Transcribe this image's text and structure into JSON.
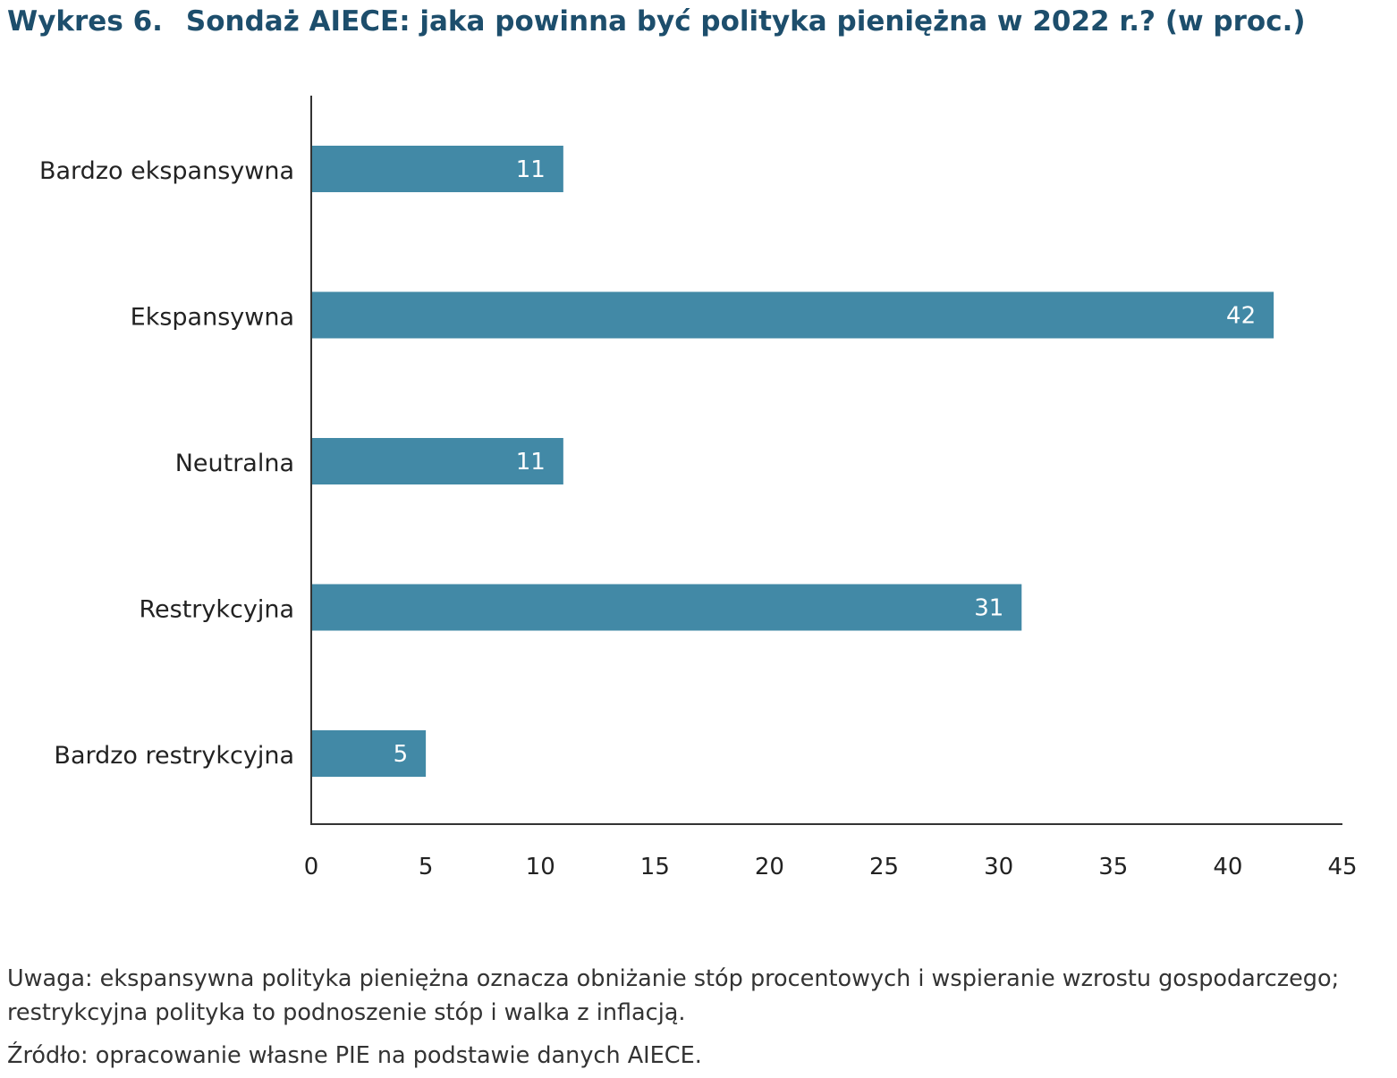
{
  "title": {
    "number": "Wykres 6.",
    "text": "Sondaż AIECE: jaka powinna być polityka pieniężna w 2022 r.? (w proc.)"
  },
  "chart_data": {
    "type": "bar",
    "orientation": "horizontal",
    "title": "Sondaż AIECE: jaka powinna być polityka pieniężna w 2022 r.? (w proc.)",
    "categories": [
      "Bardzo ekspansywna",
      "Ekspansywna",
      "Neutralna",
      "Restrykcyjna",
      "Bardzo restrykcyjna"
    ],
    "values": [
      11,
      42,
      11,
      31,
      5
    ],
    "data_labels": [
      "11",
      "42",
      "11",
      "31",
      "5"
    ],
    "xlabel": "",
    "ylabel": "",
    "xlim": [
      0,
      45
    ],
    "xticks": [
      0,
      5,
      10,
      15,
      20,
      25,
      30,
      35,
      40,
      45
    ],
    "xtick_labels": [
      "0",
      "5",
      "10",
      "15",
      "20",
      "25",
      "30",
      "35",
      "40",
      "45"
    ],
    "grid": false,
    "legend": "none",
    "bar_color": "#4289a6",
    "axis_color": "#333333"
  },
  "footer": {
    "note": "Uwaga: ekspansywna polityka pieniężna oznacza obniżanie stóp procentowych i wspieranie wzrostu gospodarczego; restrykcyjna polityka to podnoszenie stóp i walka z inflacją.",
    "source": "Źródło: opracowanie własne PIE na podstawie danych AIECE."
  }
}
